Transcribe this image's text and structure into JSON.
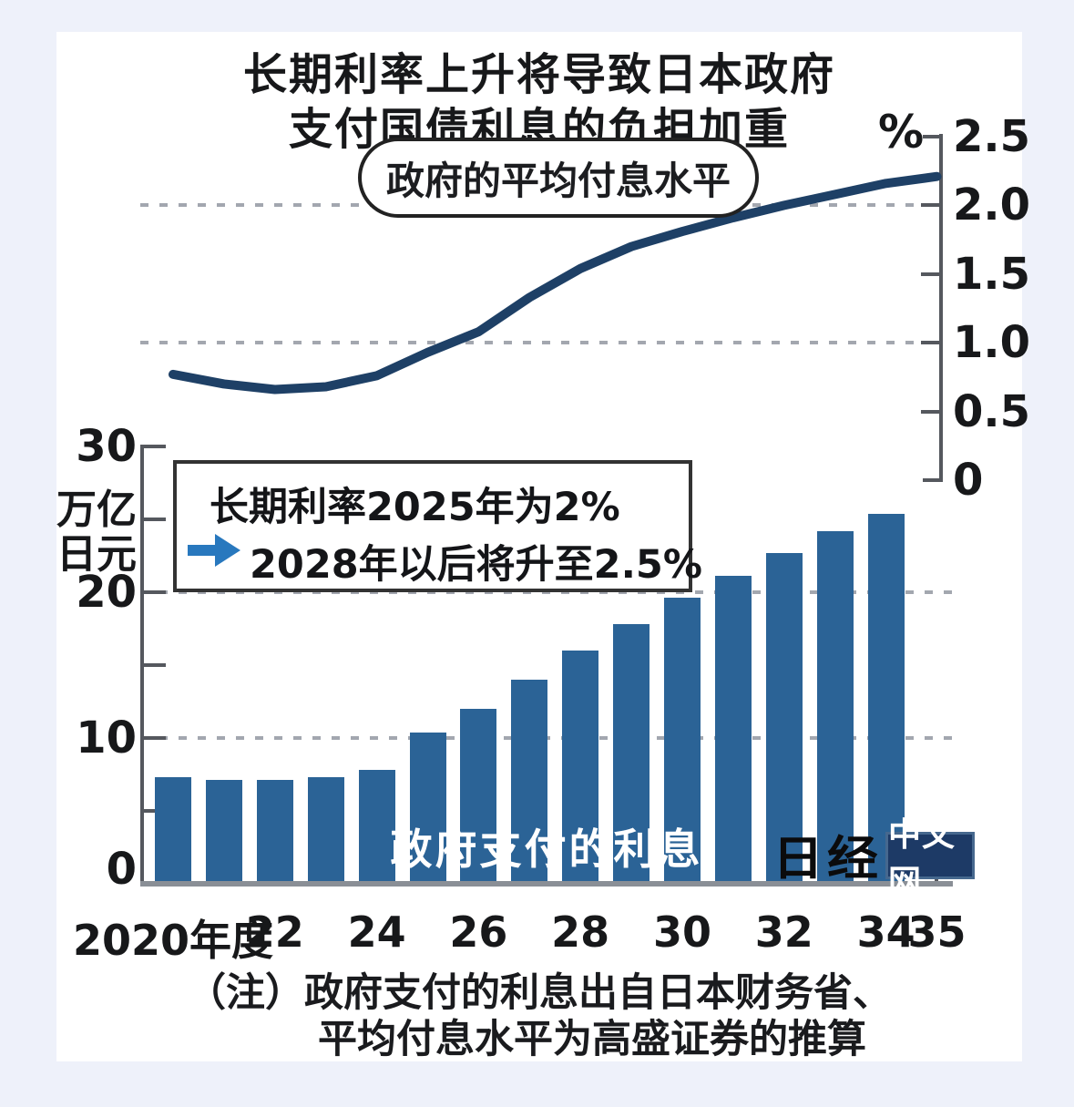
{
  "colors": {
    "background": "#eef1fa",
    "card": "#ffffff",
    "bar": "#2b6396",
    "line": "#1e4066",
    "arrow": "#2878be",
    "axis": "#55585e",
    "grid": "#a3a7af",
    "baseline": "#8a8f96",
    "text": "#17181a",
    "bar_label_text": "#ffffff",
    "logo_badge_bg": "#1d3a66",
    "logo_badge_text": "#ffffff"
  },
  "title": {
    "line1": "长期利率上升将导致日本政府",
    "line2": "支付国债利息的负担加重"
  },
  "line_chart_label": "政府的平均付息水平",
  "percent_symbol": "%",
  "annotation": {
    "line1": "长期利率2025年为2%",
    "line2": "2028年以后将升至2.5%"
  },
  "bar_chart_labels": {
    "unit_line1": "万亿",
    "unit_line2": "日元",
    "series_label": "政府支付的利息"
  },
  "note": {
    "line1": "（注）政府支付的利息出自日本财务省、",
    "line2": "平均付息水平为高盛证券的推算"
  },
  "logo": {
    "brand": "日经",
    "badge": "中文网"
  },
  "chart_data": [
    {
      "type": "line",
      "title": "政府的平均付息水平",
      "ylabel": "%",
      "x": [
        2020,
        2021,
        2022,
        2023,
        2024,
        2025,
        2026,
        2027,
        2028,
        2029,
        2030,
        2031,
        2032,
        2033,
        2034,
        2035
      ],
      "values": [
        0.77,
        0.7,
        0.66,
        0.68,
        0.76,
        0.93,
        1.08,
        1.33,
        1.54,
        1.7,
        1.81,
        1.91,
        2.0,
        2.08,
        2.16,
        2.21
      ],
      "ylim": [
        0,
        2.5
      ],
      "yticks": [
        [
          2.5,
          "2.5"
        ],
        [
          2.0,
          "2.0"
        ],
        [
          1.5,
          "1.5"
        ],
        [
          1.0,
          "1.0"
        ],
        [
          0.5,
          "0.5"
        ],
        [
          0,
          "0"
        ]
      ],
      "grid_dashed_at": [
        2.0,
        1.0
      ],
      "legend_position": "top-center"
    },
    {
      "type": "bar",
      "title": "政府支付的利息",
      "ylabel": "万亿日元",
      "x": [
        2020,
        2021,
        2022,
        2023,
        2024,
        2025,
        2026,
        2027,
        2028,
        2029,
        2030,
        2031,
        2032,
        2033,
        2034
      ],
      "values": [
        7.3,
        7.1,
        7.1,
        7.3,
        7.8,
        10.4,
        12.0,
        14.0,
        16.0,
        17.8,
        19.6,
        21.1,
        22.7,
        24.2,
        25.4
      ],
      "ylim": [
        0,
        30
      ],
      "yticks_labeled": [
        [
          30,
          "30"
        ],
        [
          20,
          "20"
        ],
        [
          10,
          "10"
        ],
        [
          0,
          "0"
        ]
      ],
      "ytick_marks": [
        30,
        25,
        20,
        15,
        10,
        5
      ],
      "grid_dashed_at": [
        20,
        10
      ],
      "xticks": [
        [
          2020,
          "2020年度"
        ],
        [
          2022,
          "22"
        ],
        [
          2024,
          "24"
        ],
        [
          2026,
          "26"
        ],
        [
          2028,
          "28"
        ],
        [
          2030,
          "30"
        ],
        [
          2032,
          "32"
        ],
        [
          2034,
          "34"
        ],
        [
          2035,
          "35"
        ]
      ]
    }
  ]
}
